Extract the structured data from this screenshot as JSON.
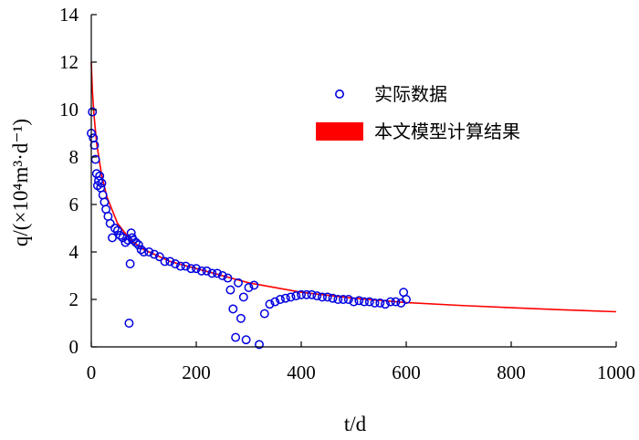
{
  "chart_data": {
    "type": "scatter",
    "xlabel": "t/d",
    "ylabel": "q/(×10⁴m³·d⁻¹)",
    "xlim": [
      0,
      1000
    ],
    "ylim": [
      0,
      14
    ],
    "x_ticks": [
      "0",
      "200",
      "400",
      "600",
      "800",
      "1000"
    ],
    "y_ticks": [
      "0",
      "2",
      "4",
      "6",
      "8",
      "10",
      "12",
      "14"
    ],
    "grid": false,
    "legend_position": "top-right",
    "series": [
      {
        "name": "实际数据",
        "type": "scatter",
        "marker": "open-circle",
        "color": "#0000e0",
        "x": [
          0,
          2,
          4,
          6,
          8,
          10,
          12,
          14,
          16,
          18,
          20,
          22,
          25,
          28,
          32,
          36,
          40,
          45,
          50,
          55,
          60,
          65,
          70,
          72,
          74,
          76,
          78,
          80,
          85,
          90,
          95,
          100,
          110,
          120,
          130,
          140,
          150,
          160,
          170,
          180,
          190,
          200,
          210,
          220,
          230,
          240,
          250,
          260,
          265,
          270,
          275,
          280,
          285,
          290,
          295,
          300,
          310,
          320,
          330,
          340,
          350,
          360,
          370,
          380,
          390,
          400,
          410,
          420,
          430,
          440,
          450,
          460,
          470,
          480,
          490,
          500,
          510,
          520,
          530,
          540,
          550,
          560,
          570,
          580,
          590,
          595,
          600
        ],
        "y": [
          9.0,
          9.9,
          8.8,
          8.5,
          7.9,
          7.3,
          6.8,
          7.0,
          7.2,
          6.7,
          6.9,
          6.4,
          6.1,
          5.8,
          5.5,
          5.2,
          4.6,
          5.0,
          4.9,
          4.7,
          4.6,
          4.4,
          4.5,
          1.0,
          3.5,
          4.8,
          4.6,
          4.5,
          4.4,
          4.3,
          4.1,
          4.0,
          4.0,
          3.9,
          3.8,
          3.6,
          3.6,
          3.5,
          3.4,
          3.4,
          3.3,
          3.3,
          3.2,
          3.2,
          3.1,
          3.1,
          3.0,
          2.9,
          2.4,
          1.6,
          0.4,
          2.7,
          1.2,
          2.1,
          0.3,
          2.5,
          2.6,
          0.1,
          1.4,
          1.8,
          1.9,
          2.0,
          2.05,
          2.1,
          2.15,
          2.2,
          2.2,
          2.2,
          2.15,
          2.1,
          2.1,
          2.05,
          2.0,
          2.0,
          2.0,
          1.9,
          1.95,
          1.9,
          1.9,
          1.85,
          1.85,
          1.8,
          1.9,
          1.9,
          1.85,
          2.3,
          2.0
        ]
      },
      {
        "name": "本文模型计算结果",
        "type": "line",
        "color": "#ff0000",
        "x": [
          0,
          2,
          5,
          10,
          20,
          30,
          50,
          75,
          100,
          150,
          200,
          300,
          400,
          500,
          600,
          700,
          800,
          900,
          1000
        ],
        "y": [
          12.0,
          10.8,
          9.8,
          8.6,
          7.2,
          6.3,
          5.2,
          4.5,
          4.1,
          3.6,
          3.3,
          2.7,
          2.3,
          2.05,
          1.87,
          1.75,
          1.65,
          1.56,
          1.48
        ]
      }
    ]
  }
}
